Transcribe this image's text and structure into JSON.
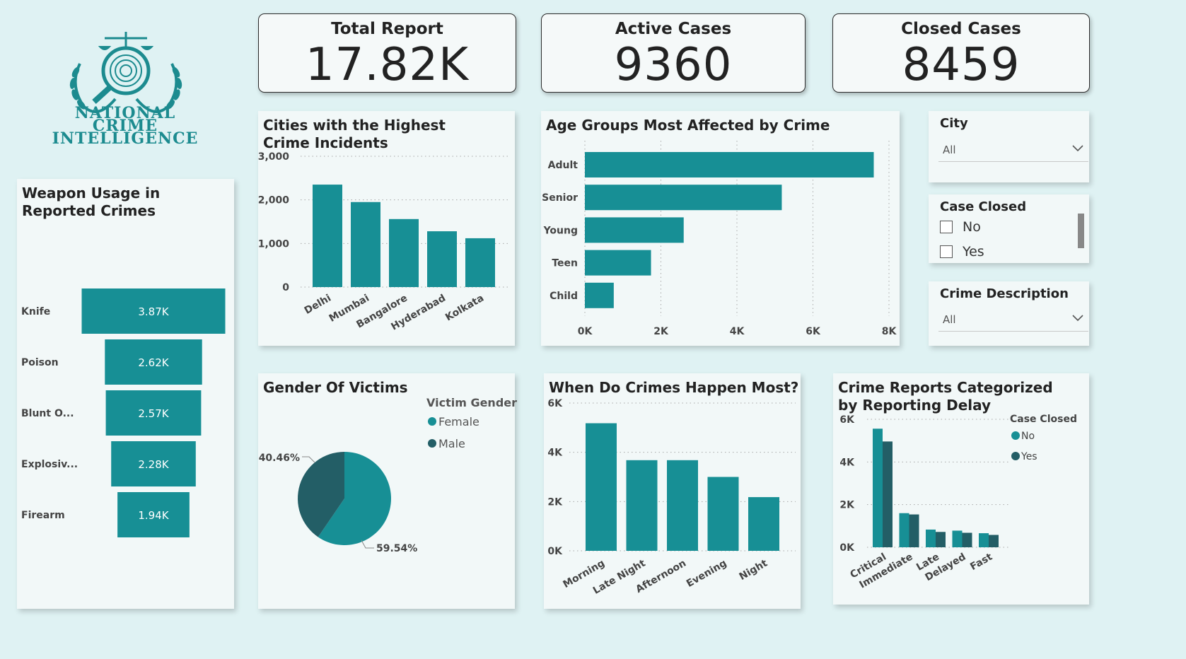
{
  "logo": {
    "line1": "NATIONAL",
    "line2": "CRIME",
    "line3": "INTELLIGENCE"
  },
  "kpis": {
    "total": {
      "title": "Total Report",
      "value": "17.82K"
    },
    "active": {
      "title": "Active Cases",
      "value": "9360"
    },
    "closed": {
      "title": "Closed Cases",
      "value": "8459"
    }
  },
  "colors": {
    "primary": "#178f95",
    "dark": "#235e66",
    "bg": "#dff2f3"
  },
  "weapons": {
    "title": "Weapon Usage in Reported Crimes",
    "items": [
      {
        "label": "Knife",
        "value": 3.87,
        "text": "3.87K"
      },
      {
        "label": "Poison",
        "value": 2.62,
        "text": "2.62K"
      },
      {
        "label": "Blunt O...",
        "value": 2.57,
        "text": "2.57K"
      },
      {
        "label": "Explosiv...",
        "value": 2.28,
        "text": "2.28K"
      },
      {
        "label": "Firearm",
        "value": 1.94,
        "text": "1.94K"
      }
    ]
  },
  "cities_chart": {
    "title": "Cities with the Highest Crime Incidents",
    "ticks": [
      "3,000",
      "2,000",
      "1,000",
      "0"
    ],
    "ylim": [
      0,
      3000
    ],
    "categories": [
      "Delhi",
      "Mumbai",
      "Bangalore",
      "Hyderabad",
      "Kolkata"
    ],
    "values": [
      2350,
      1950,
      1560,
      1280,
      1120
    ]
  },
  "age_chart": {
    "title": "Age Groups Most Affected by Crime",
    "categories": [
      "Adult",
      "Senior",
      "Young",
      "Teen",
      "Child"
    ],
    "values": [
      7600,
      5180,
      2600,
      1740,
      760
    ],
    "ticks": [
      "0K",
      "2K",
      "4K",
      "6K",
      "8K"
    ],
    "xlim": [
      0,
      8000
    ]
  },
  "slicers": {
    "city": {
      "title": "City",
      "value": "All"
    },
    "case_closed": {
      "title": "Case Closed",
      "options": [
        "No",
        "Yes"
      ]
    },
    "crime_desc": {
      "title": "Crime Description",
      "value": "All"
    }
  },
  "gender_chart": {
    "title": "Gender Of Victims",
    "legend_title": "Victim Gender",
    "slices": [
      {
        "label": "Female",
        "pct": 59.54,
        "text": "59.54%"
      },
      {
        "label": "Male",
        "pct": 40.46,
        "text": "40.46%"
      }
    ]
  },
  "time_chart": {
    "title": "When Do Crimes Happen Most?",
    "ticks": [
      "6K",
      "4K",
      "2K",
      "0K"
    ],
    "ylim": [
      0,
      6000
    ],
    "categories": [
      "Morning",
      "Late Night",
      "Afternoon",
      "Evening",
      "Night"
    ],
    "values": [
      5180,
      3680,
      3680,
      3000,
      2180
    ]
  },
  "delay_chart": {
    "title": "Crime Reports Categorized by Reporting Delay",
    "legend_title": "Case Closed",
    "ticks": [
      "6K",
      "4K",
      "2K",
      "0K"
    ],
    "ylim": [
      0,
      6000
    ],
    "categories": [
      "Critical",
      "Immediate",
      "Late",
      "Delayed",
      "Fast"
    ],
    "series": [
      {
        "name": "No",
        "values": [
          5560,
          1600,
          830,
          780,
          660
        ]
      },
      {
        "name": "Yes",
        "values": [
          4960,
          1540,
          720,
          680,
          580
        ]
      }
    ]
  }
}
